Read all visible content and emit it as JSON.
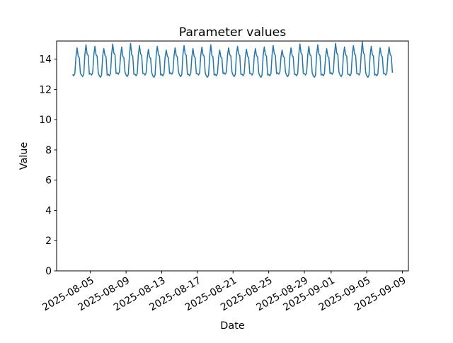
{
  "figure": {
    "background": "#ffffff"
  },
  "chart_data": {
    "type": "line",
    "title": "Parameter values",
    "xlabel": "Date",
    "ylabel": "Value",
    "line_color": "#1f77b4",
    "axis_color": "#000000",
    "grid": "off",
    "legend": "off",
    "ylim": [
      0,
      15.2
    ],
    "yticks": [
      0,
      2,
      4,
      6,
      8,
      10,
      12,
      14
    ],
    "xlim_days": [
      -1.79375,
      37.66875
    ],
    "x_start_date": "2025-08-03",
    "points_per_day": 8,
    "xtick_days": [
      2,
      6,
      10,
      14,
      18,
      22,
      26,
      29,
      33,
      37
    ],
    "xtick_labels": [
      "2025-08-05",
      "2025-08-09",
      "2025-08-13",
      "2025-08-17",
      "2025-08-21",
      "2025-08-25",
      "2025-08-29",
      "2025-09-01",
      "2025-09-05",
      "2025-09-09"
    ],
    "series": [
      {
        "name": "Parameter",
        "values": [
          13.0,
          12.9,
          13.05,
          14.15,
          14.75,
          14.2,
          14.1,
          13.05,
          12.95,
          12.85,
          13.0,
          14.3,
          14.95,
          14.35,
          14.25,
          13.0,
          13.05,
          12.95,
          13.1,
          14.25,
          14.85,
          14.3,
          14.2,
          13.1,
          12.9,
          12.8,
          12.95,
          14.2,
          14.7,
          14.25,
          14.15,
          12.95,
          13.0,
          12.9,
          13.05,
          14.35,
          15.0,
          14.4,
          14.3,
          13.05,
          13.1,
          13.0,
          13.15,
          14.15,
          14.8,
          14.2,
          14.1,
          13.15,
          12.95,
          12.85,
          13.0,
          14.25,
          15.05,
          14.3,
          14.2,
          13.0,
          13.0,
          12.9,
          13.05,
          14.3,
          14.9,
          14.35,
          14.25,
          13.05,
          13.05,
          12.95,
          13.1,
          14.1,
          14.65,
          14.15,
          14.05,
          13.1,
          12.9,
          12.8,
          12.95,
          14.25,
          14.85,
          14.3,
          14.2,
          12.95,
          13.0,
          12.9,
          13.05,
          14.15,
          14.6,
          14.2,
          14.1,
          13.05,
          13.1,
          13.0,
          13.15,
          14.2,
          14.75,
          14.25,
          14.15,
          13.15,
          12.95,
          12.85,
          13.0,
          14.3,
          14.9,
          14.35,
          14.25,
          13.0,
          13.0,
          12.9,
          13.05,
          14.15,
          14.7,
          14.2,
          14.1,
          13.05,
          13.05,
          12.95,
          13.1,
          14.25,
          14.8,
          14.3,
          14.2,
          13.1,
          12.9,
          12.8,
          12.95,
          14.2,
          14.95,
          14.25,
          14.15,
          12.95,
          13.0,
          12.9,
          13.05,
          14.1,
          14.6,
          14.15,
          14.05,
          13.05,
          13.1,
          13.0,
          13.15,
          14.25,
          14.75,
          14.3,
          14.2,
          13.15,
          12.95,
          12.85,
          13.0,
          14.3,
          14.85,
          14.35,
          14.25,
          13.0,
          13.0,
          12.9,
          13.05,
          14.15,
          14.65,
          14.2,
          14.1,
          13.05,
          13.05,
          12.95,
          13.1,
          14.2,
          14.7,
          14.25,
          14.15,
          13.1,
          12.9,
          12.8,
          12.95,
          14.25,
          14.8,
          14.3,
          14.2,
          12.95,
          13.0,
          12.9,
          13.05,
          14.3,
          14.9,
          14.35,
          14.25,
          13.05,
          13.1,
          13.0,
          13.15,
          14.15,
          14.6,
          14.2,
          14.1,
          13.15,
          12.95,
          12.85,
          13.0,
          14.2,
          14.75,
          14.25,
          14.15,
          13.0,
          13.0,
          12.9,
          13.05,
          14.35,
          15.0,
          14.4,
          14.3,
          13.05,
          13.05,
          12.95,
          13.1,
          14.25,
          14.85,
          14.3,
          14.2,
          13.1,
          12.9,
          12.8,
          12.95,
          14.3,
          14.95,
          14.35,
          14.25,
          12.95,
          13.0,
          12.9,
          13.05,
          14.15,
          14.7,
          14.2,
          14.1,
          13.05,
          13.1,
          13.0,
          13.15,
          14.35,
          15.05,
          14.4,
          14.3,
          13.15,
          12.95,
          12.85,
          13.0,
          14.25,
          14.8,
          14.3,
          14.2,
          13.0,
          13.0,
          12.9,
          13.05,
          14.3,
          14.9,
          14.35,
          14.25,
          13.05,
          13.05,
          12.95,
          13.1,
          14.35,
          15.15,
          14.4,
          14.3,
          13.1,
          12.9,
          12.8,
          12.95,
          14.25,
          14.85,
          14.3,
          14.2,
          12.95,
          13.0,
          12.9,
          13.05,
          14.2,
          14.75,
          14.25,
          14.15,
          13.05,
          13.05,
          12.95,
          13.1,
          14.25,
          14.8,
          14.3,
          14.2,
          13.1
        ]
      }
    ]
  }
}
